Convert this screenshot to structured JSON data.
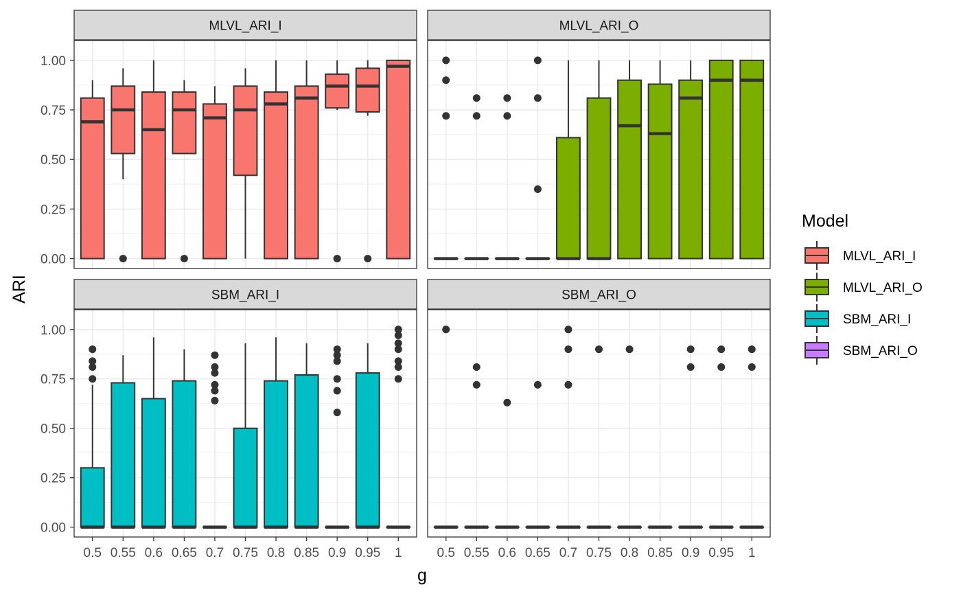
{
  "chart_data": {
    "type": "boxplot",
    "facets": [
      "MLVL_ARI_I",
      "MLVL_ARI_O",
      "SBM_ARI_I",
      "SBM_ARI_O"
    ],
    "categories": [
      "0.5",
      "0.55",
      "0.6",
      "0.65",
      "0.7",
      "0.75",
      "0.8",
      "0.85",
      "0.9",
      "0.95",
      "1"
    ],
    "xlabel": "g",
    "ylabel": "ARI",
    "ylim": [
      -0.05,
      1.1
    ],
    "yticks": [
      0,
      0.25,
      0.5,
      0.75,
      1.0
    ],
    "ytick_labels": [
      "0.00",
      "0.25",
      "0.50",
      "0.75",
      "1.00"
    ],
    "legend": {
      "title": "Model",
      "position": "right",
      "entries": [
        "MLVL_ARI_I",
        "MLVL_ARI_O",
        "SBM_ARI_I",
        "SBM_ARI_O"
      ]
    },
    "colors": {
      "MLVL_ARI_I": "#F8766D",
      "MLVL_ARI_O": "#7CAE00",
      "SBM_ARI_I": "#00BFC4",
      "SBM_ARI_O": "#C77CFF"
    },
    "series": [
      {
        "name": "MLVL_ARI_I",
        "boxes": [
          {
            "x": "0.5",
            "lower": 0,
            "q1": 0,
            "median": 0.69,
            "q3": 0.81,
            "upper": 0.9,
            "outliers": []
          },
          {
            "x": "0.55",
            "lower": 0.4,
            "q1": 0.53,
            "median": 0.75,
            "q3": 0.87,
            "upper": 0.96,
            "outliers": [
              0
            ]
          },
          {
            "x": "0.6",
            "lower": 0,
            "q1": 0,
            "median": 0.65,
            "q3": 0.84,
            "upper": 1.0,
            "outliers": []
          },
          {
            "x": "0.65",
            "lower": 0.53,
            "q1": 0.53,
            "median": 0.75,
            "q3": 0.84,
            "upper": 0.9,
            "outliers": [
              0
            ]
          },
          {
            "x": "0.7",
            "lower": 0,
            "q1": 0,
            "median": 0.71,
            "q3": 0.78,
            "upper": 0.87,
            "outliers": []
          },
          {
            "x": "0.75",
            "lower": 0,
            "q1": 0.42,
            "median": 0.75,
            "q3": 0.87,
            "upper": 0.96,
            "outliers": []
          },
          {
            "x": "0.8",
            "lower": 0,
            "q1": 0,
            "median": 0.78,
            "q3": 0.84,
            "upper": 1.0,
            "outliers": []
          },
          {
            "x": "0.85",
            "lower": 0,
            "q1": 0,
            "median": 0.81,
            "q3": 0.87,
            "upper": 1.0,
            "outliers": []
          },
          {
            "x": "0.9",
            "lower": 0.75,
            "q1": 0.76,
            "median": 0.87,
            "q3": 0.93,
            "upper": 1.0,
            "outliers": [
              0
            ]
          },
          {
            "x": "0.95",
            "lower": 0.72,
            "q1": 0.74,
            "median": 0.87,
            "q3": 0.96,
            "upper": 1.0,
            "outliers": [
              0
            ]
          },
          {
            "x": "1",
            "lower": 0,
            "q1": 0,
            "median": 0.97,
            "q3": 1.0,
            "upper": 1.0,
            "outliers": []
          }
        ]
      },
      {
        "name": "MLVL_ARI_O",
        "boxes": [
          {
            "x": "0.5",
            "lower": 0,
            "q1": 0,
            "median": 0,
            "q3": 0,
            "upper": 0,
            "outliers": [
              1.0,
              0.9,
              0.72
            ]
          },
          {
            "x": "0.55",
            "lower": 0,
            "q1": 0,
            "median": 0,
            "q3": 0,
            "upper": 0,
            "outliers": [
              0.81,
              0.72
            ]
          },
          {
            "x": "0.6",
            "lower": 0,
            "q1": 0,
            "median": 0,
            "q3": 0,
            "upper": 0,
            "outliers": [
              0.81,
              0.72
            ]
          },
          {
            "x": "0.65",
            "lower": 0,
            "q1": 0,
            "median": 0,
            "q3": 0,
            "upper": 0,
            "outliers": [
              1.0,
              0.81,
              0.35
            ]
          },
          {
            "x": "0.7",
            "lower": 0,
            "q1": 0,
            "median": 0,
            "q3": 0.61,
            "upper": 1.0,
            "outliers": []
          },
          {
            "x": "0.75",
            "lower": 0,
            "q1": 0,
            "median": 0,
            "q3": 0.81,
            "upper": 1.0,
            "outliers": []
          },
          {
            "x": "0.8",
            "lower": 0,
            "q1": 0,
            "median": 0.67,
            "q3": 0.9,
            "upper": 1.0,
            "outliers": []
          },
          {
            "x": "0.85",
            "lower": 0,
            "q1": 0,
            "median": 0.63,
            "q3": 0.88,
            "upper": 1.0,
            "outliers": []
          },
          {
            "x": "0.9",
            "lower": 0,
            "q1": 0,
            "median": 0.81,
            "q3": 0.9,
            "upper": 1.0,
            "outliers": []
          },
          {
            "x": "0.95",
            "lower": 0,
            "q1": 0,
            "median": 0.9,
            "q3": 1.0,
            "upper": 1.0,
            "outliers": []
          },
          {
            "x": "1",
            "lower": 0,
            "q1": 0,
            "median": 0.9,
            "q3": 1.0,
            "upper": 1.0,
            "outliers": []
          }
        ]
      },
      {
        "name": "SBM_ARI_I",
        "boxes": [
          {
            "x": "0.5",
            "lower": 0,
            "q1": 0,
            "median": 0,
            "q3": 0.3,
            "upper": 0.72,
            "outliers": [
              0.9,
              0.84,
              0.81,
              0.75
            ]
          },
          {
            "x": "0.55",
            "lower": 0,
            "q1": 0,
            "median": 0,
            "q3": 0.73,
            "upper": 0.87,
            "outliers": []
          },
          {
            "x": "0.6",
            "lower": 0,
            "q1": 0,
            "median": 0,
            "q3": 0.65,
            "upper": 0.96,
            "outliers": []
          },
          {
            "x": "0.65",
            "lower": 0,
            "q1": 0,
            "median": 0,
            "q3": 0.74,
            "upper": 0.9,
            "outliers": []
          },
          {
            "x": "0.7",
            "lower": 0,
            "q1": 0,
            "median": 0,
            "q3": 0,
            "upper": 0,
            "outliers": [
              0.87,
              0.81,
              0.78,
              0.72,
              0.69,
              0.64
            ]
          },
          {
            "x": "0.75",
            "lower": 0,
            "q1": 0,
            "median": 0,
            "q3": 0.5,
            "upper": 0.93,
            "outliers": []
          },
          {
            "x": "0.8",
            "lower": 0,
            "q1": 0,
            "median": 0,
            "q3": 0.74,
            "upper": 0.96,
            "outliers": []
          },
          {
            "x": "0.85",
            "lower": 0,
            "q1": 0,
            "median": 0,
            "q3": 0.77,
            "upper": 0.93,
            "outliers": []
          },
          {
            "x": "0.9",
            "lower": 0,
            "q1": 0,
            "median": 0,
            "q3": 0,
            "upper": 0,
            "outliers": [
              0.9,
              0.87,
              0.84,
              0.75,
              0.69,
              0.58
            ]
          },
          {
            "x": "0.95",
            "lower": 0,
            "q1": 0,
            "median": 0,
            "q3": 0.78,
            "upper": 0.93,
            "outliers": []
          },
          {
            "x": "1",
            "lower": 0,
            "q1": 0,
            "median": 0,
            "q3": 0,
            "upper": 0,
            "outliers": [
              1.0,
              0.97,
              0.93,
              0.9,
              0.84,
              0.81,
              0.75
            ]
          }
        ]
      },
      {
        "name": "SBM_ARI_O",
        "boxes": [
          {
            "x": "0.5",
            "lower": 0,
            "q1": 0,
            "median": 0,
            "q3": 0,
            "upper": 0,
            "outliers": [
              1.0
            ]
          },
          {
            "x": "0.55",
            "lower": 0,
            "q1": 0,
            "median": 0,
            "q3": 0,
            "upper": 0,
            "outliers": [
              0.81,
              0.72
            ]
          },
          {
            "x": "0.6",
            "lower": 0,
            "q1": 0,
            "median": 0,
            "q3": 0,
            "upper": 0,
            "outliers": [
              0.63
            ]
          },
          {
            "x": "0.65",
            "lower": 0,
            "q1": 0,
            "median": 0,
            "q3": 0,
            "upper": 0,
            "outliers": [
              0.72
            ]
          },
          {
            "x": "0.7",
            "lower": 0,
            "q1": 0,
            "median": 0,
            "q3": 0,
            "upper": 0,
            "outliers": [
              1.0,
              0.9,
              0.72
            ]
          },
          {
            "x": "0.75",
            "lower": 0,
            "q1": 0,
            "median": 0,
            "q3": 0,
            "upper": 0,
            "outliers": [
              0.9
            ]
          },
          {
            "x": "0.8",
            "lower": 0,
            "q1": 0,
            "median": 0,
            "q3": 0,
            "upper": 0,
            "outliers": [
              0.9
            ]
          },
          {
            "x": "0.85",
            "lower": 0,
            "q1": 0,
            "median": 0,
            "q3": 0,
            "upper": 0,
            "outliers": []
          },
          {
            "x": "0.9",
            "lower": 0,
            "q1": 0,
            "median": 0,
            "q3": 0,
            "upper": 0,
            "outliers": [
              0.9,
              0.81
            ]
          },
          {
            "x": "0.95",
            "lower": 0,
            "q1": 0,
            "median": 0,
            "q3": 0,
            "upper": 0,
            "outliers": [
              0.9,
              0.81
            ]
          },
          {
            "x": "1",
            "lower": 0,
            "q1": 0,
            "median": 0,
            "q3": 0,
            "upper": 0,
            "outliers": [
              0.9,
              0.81
            ]
          }
        ]
      }
    ]
  }
}
